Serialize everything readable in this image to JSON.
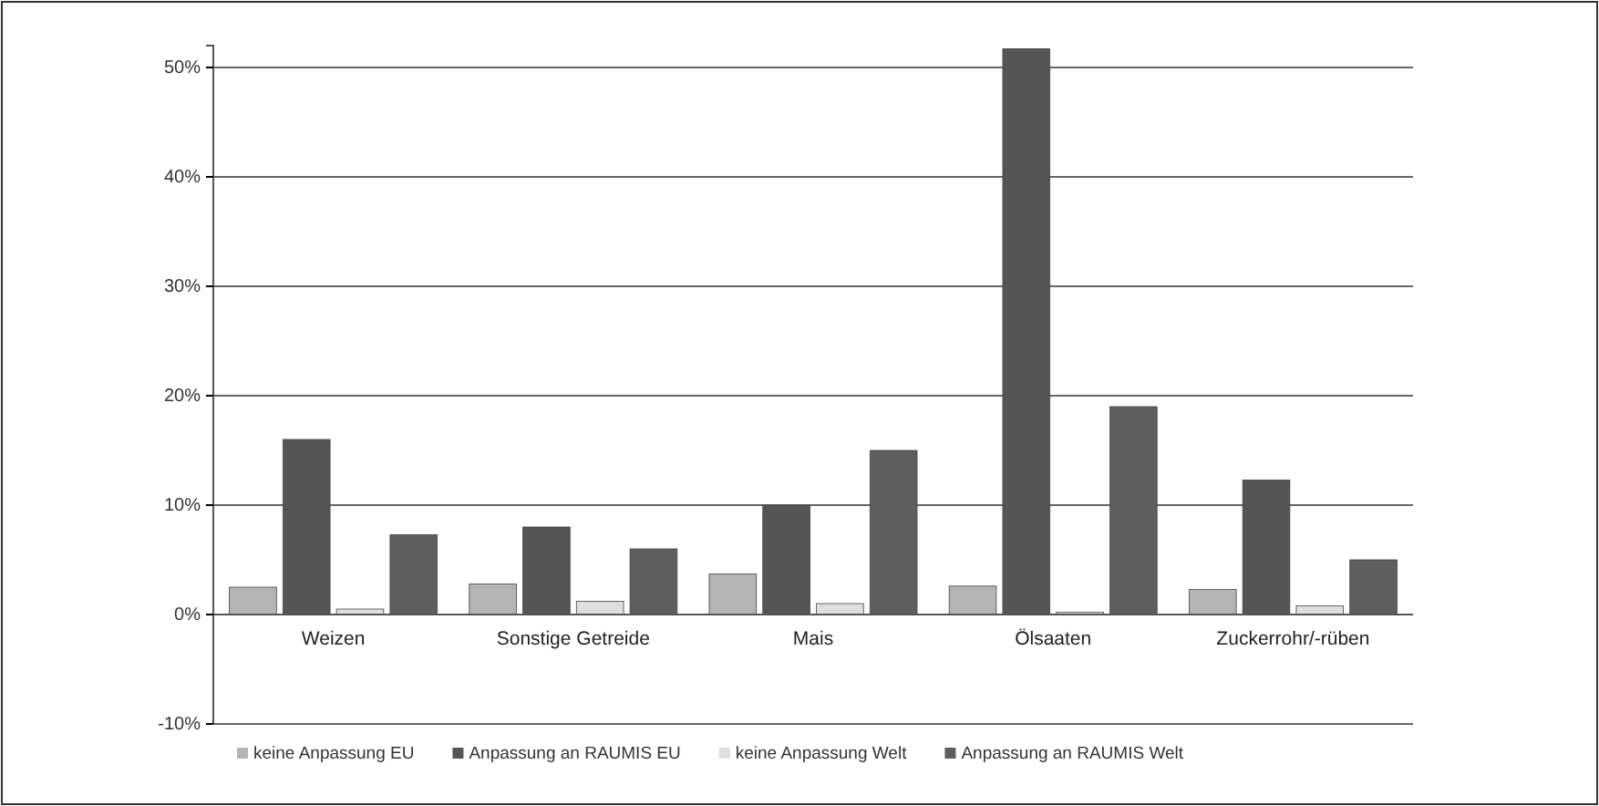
{
  "chart_data": {
    "type": "bar",
    "categories": [
      "Weizen",
      "Sonstige Getreide",
      "Mais",
      "Ölsaaten",
      "Zuckerrohr/-rüben"
    ],
    "series": [
      {
        "name": "keine Anpassung EU",
        "color": "#b4b4b4",
        "values": [
          2.5,
          2.8,
          3.7,
          2.6,
          2.3
        ]
      },
      {
        "name": "Anpassung an RAUMIS EU",
        "color": "#555555",
        "values": [
          16,
          8,
          10,
          51.7,
          12.3
        ]
      },
      {
        "name": "keine Anpassung Welt",
        "color": "#dedede",
        "values": [
          0.5,
          1.2,
          1,
          0.2,
          0.8
        ]
      },
      {
        "name": "Anpassung an RAUMIS Welt",
        "color": "#5e5e5e",
        "values": [
          7.3,
          6,
          15,
          19,
          5
        ]
      }
    ],
    "ylim": [
      -10,
      52
    ],
    "yticks": [
      {
        "value": -10,
        "label": "-10%"
      },
      {
        "value": 0,
        "label": "0%"
      },
      {
        "value": 10,
        "label": "10%"
      },
      {
        "value": 20,
        "label": "20%"
      },
      {
        "value": 30,
        "label": "30%"
      },
      {
        "value": 40,
        "label": "40%"
      },
      {
        "value": 50,
        "label": "50%"
      }
    ],
    "grid": "y",
    "legend": "bottom"
  }
}
